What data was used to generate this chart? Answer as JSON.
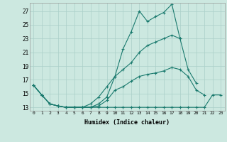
{
  "xlabel": "Humidex (Indice chaleur)",
  "bg_color": "#cce8e0",
  "line_color": "#1a7a6e",
  "grid_color": "#aacfc8",
  "xlim": [
    -0.5,
    23.5
  ],
  "ylim": [
    12.5,
    28.2
  ],
  "xticks": [
    0,
    1,
    2,
    3,
    4,
    5,
    6,
    7,
    8,
    9,
    10,
    11,
    12,
    13,
    14,
    15,
    16,
    17,
    18,
    19,
    20,
    21,
    22,
    23
  ],
  "yticks": [
    13,
    15,
    17,
    19,
    21,
    23,
    25,
    27
  ],
  "series": [
    [
      16.2,
      14.8,
      13.5,
      13.2,
      13.0,
      13.0,
      13.0,
      13.0,
      13.0,
      13.0,
      13.0,
      13.0,
      13.0,
      13.0,
      13.0,
      13.0,
      13.0,
      13.0,
      13.0,
      13.0,
      13.0,
      13.0,
      14.8,
      14.8
    ],
    [
      16.2,
      14.8,
      13.5,
      13.2,
      13.0,
      13.0,
      13.0,
      13.0,
      13.5,
      14.5,
      17.5,
      21.5,
      24.0,
      27.0,
      25.5,
      26.2,
      26.8,
      28.0,
      23.0,
      null,
      null,
      null,
      null,
      null
    ],
    [
      16.2,
      14.8,
      13.5,
      13.2,
      13.0,
      13.0,
      13.0,
      13.5,
      14.5,
      16.0,
      17.5,
      18.5,
      19.5,
      21.0,
      22.0,
      22.5,
      23.0,
      23.5,
      23.0,
      18.5,
      16.5,
      null,
      null,
      null
    ],
    [
      16.2,
      14.8,
      13.5,
      13.2,
      13.0,
      13.0,
      13.0,
      13.0,
      13.2,
      14.0,
      15.5,
      16.0,
      16.8,
      17.5,
      17.8,
      18.0,
      18.3,
      18.8,
      18.5,
      17.5,
      15.5,
      14.8,
      null,
      null
    ]
  ]
}
